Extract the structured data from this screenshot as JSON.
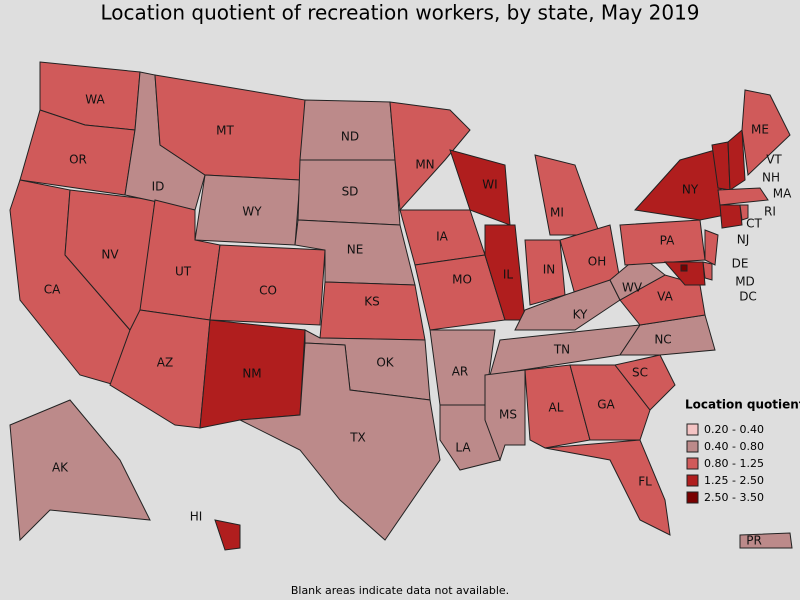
{
  "title": "Location quotient of recreation workers, by state, May 2019",
  "note": "Blank areas indicate data not available.",
  "legend": {
    "title": "Location quotient",
    "items": [
      {
        "label": "0.20 - 0.40",
        "color": "#f4c4c4"
      },
      {
        "label": "0.40 - 0.80",
        "color": "#bc8a8a"
      },
      {
        "label": "0.80 - 1.25",
        "color": "#d05a5a"
      },
      {
        "label": "1.25 - 2.50",
        "color": "#b01e1e"
      },
      {
        "label": "2.50 - 3.50",
        "color": "#780000"
      }
    ]
  },
  "states": [
    {
      "label": "WA",
      "color": "#d05a5a"
    },
    {
      "label": "OR",
      "color": "#d05a5a"
    },
    {
      "label": "CA",
      "color": "#d05a5a"
    },
    {
      "label": "NV",
      "color": "#d05a5a"
    },
    {
      "label": "ID",
      "color": "#bc8a8a"
    },
    {
      "label": "MT",
      "color": "#d05a5a"
    },
    {
      "label": "WY",
      "color": "#bc8a8a"
    },
    {
      "label": "UT",
      "color": "#d05a5a"
    },
    {
      "label": "CO",
      "color": "#d05a5a"
    },
    {
      "label": "AZ",
      "color": "#d05a5a"
    },
    {
      "label": "NM",
      "color": "#b01e1e"
    },
    {
      "label": "ND",
      "color": "#bc8a8a"
    },
    {
      "label": "SD",
      "color": "#bc8a8a"
    },
    {
      "label": "NE",
      "color": "#bc8a8a"
    },
    {
      "label": "KS",
      "color": "#d05a5a"
    },
    {
      "label": "OK",
      "color": "#bc8a8a"
    },
    {
      "label": "TX",
      "color": "#bc8a8a"
    },
    {
      "label": "MN",
      "color": "#d05a5a"
    },
    {
      "label": "IA",
      "color": "#d05a5a"
    },
    {
      "label": "MO",
      "color": "#d05a5a"
    },
    {
      "label": "AR",
      "color": "#bc8a8a"
    },
    {
      "label": "LA",
      "color": "#bc8a8a"
    },
    {
      "label": "WI",
      "color": "#b01e1e"
    },
    {
      "label": "IL",
      "color": "#b01e1e"
    },
    {
      "label": "MI",
      "color": "#d05a5a"
    },
    {
      "label": "IN",
      "color": "#d05a5a"
    },
    {
      "label": "OH",
      "color": "#d05a5a"
    },
    {
      "label": "KY",
      "color": "#bc8a8a"
    },
    {
      "label": "TN",
      "color": "#bc8a8a"
    },
    {
      "label": "MS",
      "color": "#bc8a8a"
    },
    {
      "label": "AL",
      "color": "#d05a5a"
    },
    {
      "label": "GA",
      "color": "#d05a5a"
    },
    {
      "label": "FL",
      "color": "#d05a5a"
    },
    {
      "label": "SC",
      "color": "#d05a5a"
    },
    {
      "label": "NC",
      "color": "#bc8a8a"
    },
    {
      "label": "VA",
      "color": "#d05a5a"
    },
    {
      "label": "WV",
      "color": "#bc8a8a"
    },
    {
      "label": "PA",
      "color": "#d05a5a"
    },
    {
      "label": "NY",
      "color": "#b01e1e"
    },
    {
      "label": "VT",
      "color": "#b01e1e"
    },
    {
      "label": "NH",
      "color": "#b01e1e"
    },
    {
      "label": "ME",
      "color": "#d05a5a"
    },
    {
      "label": "MA",
      "color": "#d05a5a"
    },
    {
      "label": "CT",
      "color": "#b01e1e"
    },
    {
      "label": "RI",
      "color": "#d05a5a"
    },
    {
      "label": "NJ",
      "color": "#d05a5a"
    },
    {
      "label": "DE",
      "color": "#d05a5a"
    },
    {
      "label": "MD",
      "color": "#b01e1e"
    },
    {
      "label": "DC",
      "color": "#780000"
    },
    {
      "label": "AK",
      "color": "#bc8a8a"
    },
    {
      "label": "HI",
      "color": "#b01e1e"
    },
    {
      "label": "PR",
      "color": "#bc8a8a"
    }
  ]
}
